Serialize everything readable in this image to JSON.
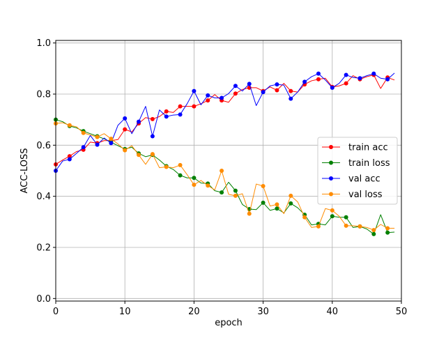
{
  "chart_data": {
    "type": "line",
    "title": "",
    "xlabel": "epoch",
    "ylabel": "ACC-LOSS",
    "xlim": [
      0,
      50
    ],
    "ylim": [
      0.0,
      1.0
    ],
    "xticks": [
      0,
      10,
      20,
      30,
      40,
      50
    ],
    "xtick_labels": [
      "0",
      "10",
      "20",
      "30",
      "40",
      "50"
    ],
    "yticks": [
      0.0,
      0.2,
      0.4,
      0.6,
      0.8,
      1.0
    ],
    "ytick_labels": [
      "0.0",
      "0.2",
      "0.4",
      "0.6",
      "0.8",
      "1.0"
    ],
    "grid": true,
    "legend_position": "center-right",
    "x": [
      0,
      1,
      2,
      3,
      4,
      5,
      6,
      7,
      8,
      9,
      10,
      11,
      12,
      13,
      14,
      15,
      16,
      17,
      18,
      19,
      20,
      21,
      22,
      23,
      24,
      25,
      26,
      27,
      28,
      29,
      30,
      31,
      32,
      33,
      34,
      35,
      36,
      37,
      38,
      39,
      40,
      41,
      42,
      43,
      44,
      45,
      46,
      47,
      48,
      49
    ],
    "series": [
      {
        "name": "train acc",
        "color": "#ff0000",
        "values": [
          0.525,
          0.542,
          0.557,
          0.575,
          0.582,
          0.612,
          0.608,
          0.618,
          0.618,
          0.622,
          0.662,
          0.652,
          0.685,
          0.708,
          0.702,
          0.712,
          0.732,
          0.728,
          0.752,
          0.752,
          0.752,
          0.762,
          0.775,
          0.798,
          0.775,
          0.768,
          0.802,
          0.818,
          0.825,
          0.825,
          0.812,
          0.828,
          0.815,
          0.842,
          0.812,
          0.808,
          0.838,
          0.852,
          0.858,
          0.862,
          0.828,
          0.832,
          0.842,
          0.872,
          0.858,
          0.868,
          0.875,
          0.822,
          0.865,
          0.855
        ]
      },
      {
        "name": "train loss",
        "color": "#008000",
        "values": [
          0.7,
          0.692,
          0.675,
          0.668,
          0.655,
          0.645,
          0.635,
          0.625,
          0.612,
          0.598,
          0.585,
          0.592,
          0.568,
          0.555,
          0.562,
          0.542,
          0.518,
          0.505,
          0.482,
          0.472,
          0.472,
          0.452,
          0.45,
          0.422,
          0.415,
          0.455,
          0.422,
          0.368,
          0.35,
          0.348,
          0.375,
          0.345,
          0.352,
          0.335,
          0.372,
          0.355,
          0.328,
          0.288,
          0.292,
          0.288,
          0.322,
          0.318,
          0.318,
          0.278,
          0.282,
          0.272,
          0.252,
          0.328,
          0.258,
          0.26
        ]
      },
      {
        "name": "val acc",
        "color": "#0000ff",
        "values": [
          0.5,
          0.538,
          0.545,
          0.568,
          0.592,
          0.638,
          0.602,
          0.628,
          0.608,
          0.678,
          0.705,
          0.645,
          0.692,
          0.752,
          0.635,
          0.738,
          0.712,
          0.718,
          0.72,
          0.762,
          0.812,
          0.758,
          0.795,
          0.785,
          0.785,
          0.802,
          0.832,
          0.812,
          0.84,
          0.755,
          0.808,
          0.832,
          0.838,
          0.835,
          0.782,
          0.808,
          0.848,
          0.868,
          0.88,
          0.855,
          0.825,
          0.842,
          0.875,
          0.865,
          0.862,
          0.872,
          0.88,
          0.862,
          0.858,
          0.882
        ]
      },
      {
        "name": "val loss",
        "color": "#ff8c00",
        "values": [
          0.685,
          0.688,
          0.678,
          0.672,
          0.648,
          0.64,
          0.632,
          0.645,
          0.625,
          0.605,
          0.58,
          0.598,
          0.562,
          0.525,
          0.565,
          0.512,
          0.515,
          0.512,
          0.522,
          0.485,
          0.445,
          0.462,
          0.442,
          0.425,
          0.5,
          0.408,
          0.402,
          0.41,
          0.332,
          0.448,
          0.44,
          0.362,
          0.368,
          0.332,
          0.402,
          0.378,
          0.318,
          0.278,
          0.282,
          0.352,
          0.345,
          0.322,
          0.285,
          0.285,
          0.282,
          0.278,
          0.268,
          0.29,
          0.275,
          0.275
        ]
      }
    ]
  }
}
